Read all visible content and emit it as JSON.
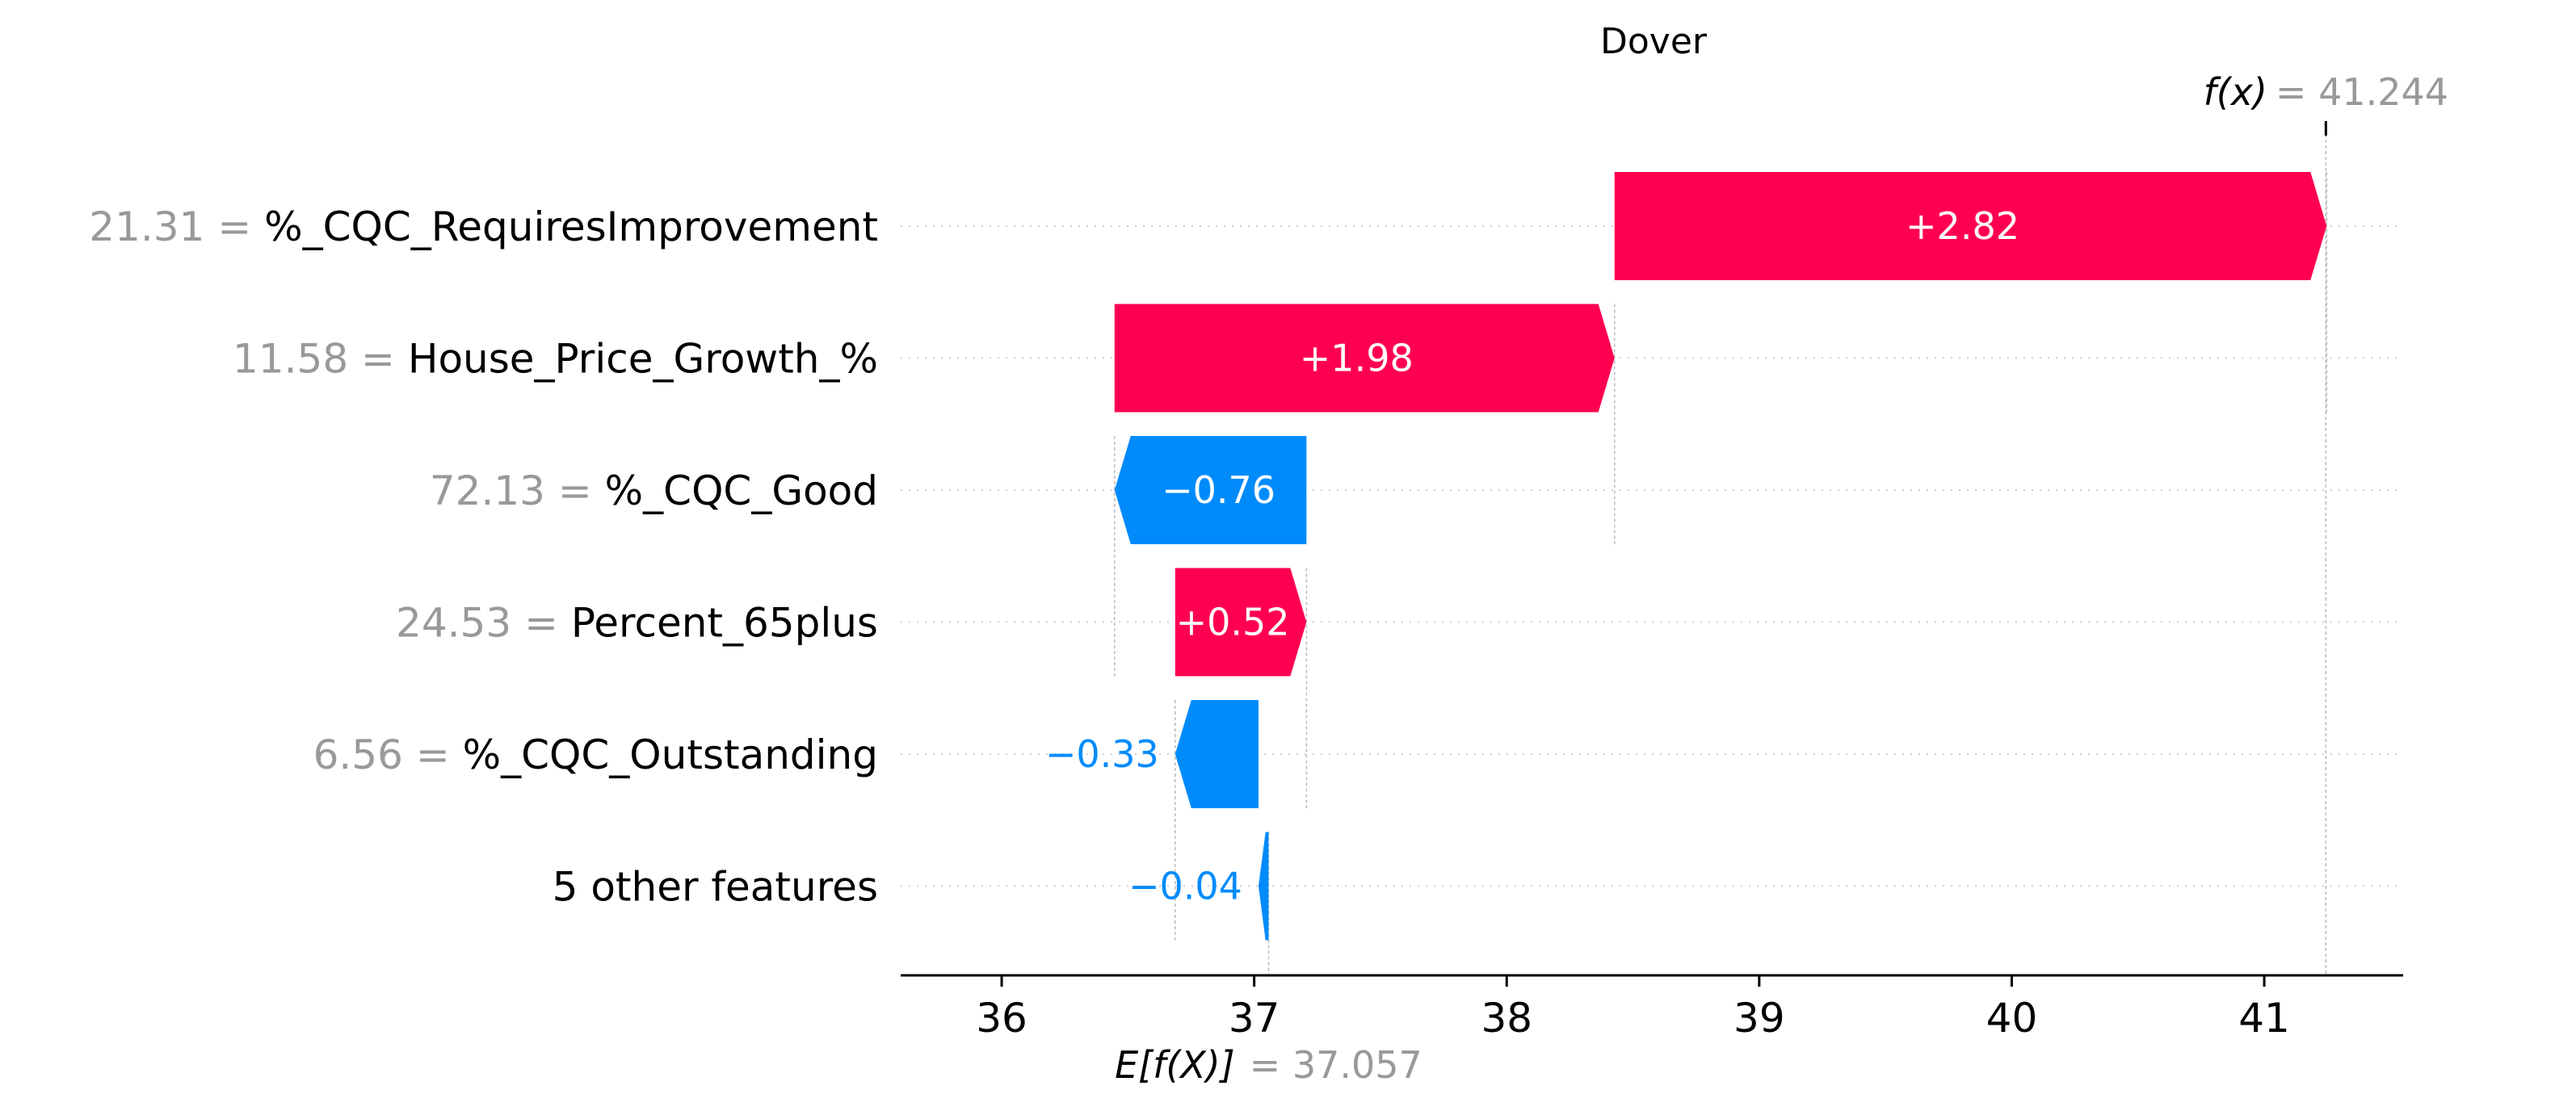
{
  "chart_data": {
    "type": "waterfall",
    "title": "Dover",
    "base_value": 37.057,
    "base_label_math": "E[f(X)]",
    "base_label_value": "= 37.057",
    "output_value": 41.244,
    "output_label_math": "f(x)",
    "output_label_value": "= 41.244",
    "xlim": [
      35.6,
      41.55
    ],
    "xticks": [
      36,
      37,
      38,
      39,
      40,
      41
    ],
    "colors": {
      "positive": "#ff0051",
      "negative": "#008bfb"
    },
    "features": [
      {
        "value": "21.31",
        "name": "%_CQC_RequiresImprovement",
        "shap": 2.82,
        "label": "+2.82"
      },
      {
        "value": "11.58",
        "name": "House_Price_Growth_%",
        "shap": 1.98,
        "label": "+1.98"
      },
      {
        "value": "72.13",
        "name": "%_CQC_Good",
        "shap": -0.76,
        "label": "−0.76"
      },
      {
        "value": "24.53",
        "name": "Percent_65plus",
        "shap": 0.52,
        "label": "+0.52"
      },
      {
        "value": "6.56",
        "name": "%_CQC_Outstanding",
        "shap": -0.33,
        "label": "−0.33"
      },
      {
        "value": "",
        "name": "5 other features",
        "shap": -0.04,
        "label": "−0.04"
      }
    ]
  }
}
